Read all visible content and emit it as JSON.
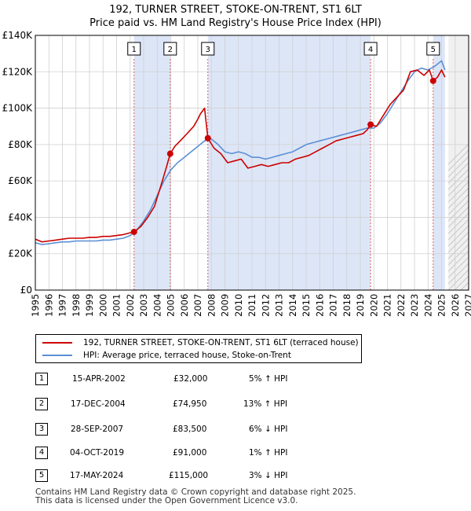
{
  "title_line1": "192, TURNER STREET, STOKE-ON-TRENT, ST1 6LT",
  "title_line2": "Price paid vs. HM Land Registry's House Price Index (HPI)",
  "colors": {
    "price": "#cc0000",
    "hpi": "#5b8fd6",
    "shade": "#dde6f7",
    "grid": "#d0d0d0",
    "marker_line": "#e06060"
  },
  "legend": {
    "price_label": "192, TURNER STREET, STOKE-ON-TRENT, ST1 6LT (terraced house)",
    "hpi_label": "HPI: Average price, terraced house, Stoke-on-Trent"
  },
  "sales": [
    {
      "num": "1",
      "date": "15-APR-2002",
      "price": "£32,000",
      "change": "5% ↑ HPI"
    },
    {
      "num": "2",
      "date": "17-DEC-2004",
      "price": "£74,950",
      "change": "13% ↑ HPI"
    },
    {
      "num": "3",
      "date": "28-SEP-2007",
      "price": "£83,500",
      "change": "6% ↓ HPI"
    },
    {
      "num": "4",
      "date": "04-OCT-2019",
      "price": "£91,000",
      "change": "1% ↑ HPI"
    },
    {
      "num": "5",
      "date": "17-MAY-2024",
      "price": "£115,000",
      "change": "3% ↓ HPI"
    }
  ],
  "footer": {
    "line1": "Contains HM Land Registry data © Crown copyright and database right 2025.",
    "line2": "This data is licensed under the Open Government Licence v3.0."
  },
  "chart_data": {
    "type": "line",
    "title": "192, TURNER STREET, STOKE-ON-TRENT, ST1 6LT — Price paid vs. HM Land Registry's House Price Index (HPI)",
    "xlabel": "",
    "ylabel": "",
    "xlim": [
      1995,
      2027
    ],
    "ylim": [
      0,
      140000
    ],
    "x_ticks": [
      1995,
      1996,
      1997,
      1998,
      1999,
      2000,
      2001,
      2002,
      2003,
      2004,
      2005,
      2006,
      2007,
      2008,
      2009,
      2010,
      2011,
      2012,
      2013,
      2014,
      2015,
      2016,
      2017,
      2018,
      2019,
      2020,
      2021,
      2022,
      2023,
      2024,
      2025,
      2026,
      2027
    ],
    "y_ticks": [
      {
        "value": 0,
        "label": "£0"
      },
      {
        "value": 20000,
        "label": "£20K"
      },
      {
        "value": 40000,
        "label": "£40K"
      },
      {
        "value": 60000,
        "label": "£60K"
      },
      {
        "value": 80000,
        "label": "£80K"
      },
      {
        "value": 100000,
        "label": "£100K"
      },
      {
        "value": 120000,
        "label": "£120K"
      },
      {
        "value": 140000,
        "label": "£140K"
      }
    ],
    "grid": true,
    "shaded_ranges": [
      [
        2002.29,
        2004.96
      ],
      [
        2007.74,
        2019.76
      ],
      [
        2024.38,
        2025.25
      ]
    ],
    "projection_start": 2025.5,
    "sale_markers": [
      {
        "label": "1",
        "x": 2002.29,
        "y": 32000
      },
      {
        "label": "2",
        "x": 2004.96,
        "y": 74950
      },
      {
        "label": "3",
        "x": 2007.74,
        "y": 83500
      },
      {
        "label": "4",
        "x": 2019.76,
        "y": 91000
      },
      {
        "label": "5",
        "x": 2024.38,
        "y": 115000
      }
    ],
    "series": [
      {
        "name": "192, TURNER STREET, STOKE-ON-TRENT, ST1 6LT (terraced house)",
        "color": "#cc0000",
        "x": [
          1995,
          1995.5,
          1996,
          1996.5,
          1997,
          1997.5,
          1998,
          1998.5,
          1999,
          1999.5,
          2000,
          2000.5,
          2001,
          2001.5,
          2002,
          2002.29,
          2002.8,
          2003.3,
          2003.8,
          2004.3,
          2004.7,
          2004.96,
          2005.3,
          2005.7,
          2006.2,
          2006.7,
          2007,
          2007.2,
          2007.5,
          2007.74,
          2008.2,
          2008.7,
          2009.2,
          2009.7,
          2010.2,
          2010.7,
          2011.2,
          2011.7,
          2012.2,
          2012.7,
          2013.2,
          2013.7,
          2014.2,
          2014.7,
          2015.2,
          2015.7,
          2016.2,
          2016.7,
          2017.2,
          2017.7,
          2018.2,
          2018.7,
          2019.2,
          2019.5,
          2019.76,
          2020.2,
          2020.7,
          2021.2,
          2021.7,
          2022.2,
          2022.7,
          2023.2,
          2023.7,
          2024.1,
          2024.38,
          2024.7,
          2025.0,
          2025.25
        ],
        "values": [
          28000,
          26500,
          27000,
          27500,
          28000,
          28500,
          28500,
          28500,
          29000,
          29000,
          29500,
          29500,
          30000,
          30500,
          31500,
          32000,
          35000,
          40000,
          46000,
          58000,
          68000,
          74950,
          79000,
          82000,
          86000,
          90000,
          94000,
          97000,
          100000,
          83500,
          78000,
          75000,
          70000,
          71000,
          72000,
          67000,
          68000,
          69000,
          68000,
          69000,
          70000,
          70000,
          72000,
          73000,
          74000,
          76000,
          78000,
          80000,
          82000,
          83000,
          84000,
          85000,
          86000,
          88000,
          91000,
          90000,
          96000,
          102000,
          106000,
          110000,
          120000,
          121000,
          118000,
          121000,
          115000,
          117000,
          121000,
          117000
        ]
      },
      {
        "name": "HPI: Average price, terraced house, Stoke-on-Trent",
        "color": "#5b8fd6",
        "x": [
          1995,
          1995.5,
          1996,
          1996.5,
          1997,
          1997.5,
          1998,
          1998.5,
          1999,
          1999.5,
          2000,
          2000.5,
          2001,
          2001.5,
          2002,
          2002.5,
          2003,
          2003.5,
          2004,
          2004.5,
          2005,
          2005.5,
          2006,
          2006.5,
          2007,
          2007.5,
          2008,
          2008.5,
          2009,
          2009.5,
          2010,
          2010.5,
          2011,
          2011.5,
          2012,
          2012.5,
          2013,
          2013.5,
          2014,
          2014.5,
          2015,
          2015.5,
          2016,
          2016.5,
          2017,
          2017.5,
          2018,
          2018.5,
          2019,
          2019.5,
          2020,
          2020.5,
          2021,
          2021.5,
          2022,
          2022.5,
          2023,
          2023.5,
          2024,
          2024.5,
          2025,
          2025.25
        ],
        "values": [
          26000,
          25000,
          25500,
          26000,
          26500,
          26500,
          27000,
          27000,
          27000,
          27000,
          27500,
          27500,
          28000,
          28500,
          30000,
          33000,
          38000,
          44000,
          52000,
          60000,
          66000,
          70000,
          73000,
          76000,
          79000,
          82000,
          83000,
          80000,
          76000,
          75000,
          76000,
          75000,
          73000,
          73000,
          72000,
          73000,
          74000,
          75000,
          76000,
          78000,
          80000,
          81000,
          82000,
          83000,
          84000,
          85000,
          86000,
          87000,
          88000,
          89000,
          89000,
          92000,
          97000,
          103000,
          109000,
          115000,
          120000,
          122000,
          121000,
          123000,
          126000,
          121000
        ]
      }
    ]
  }
}
